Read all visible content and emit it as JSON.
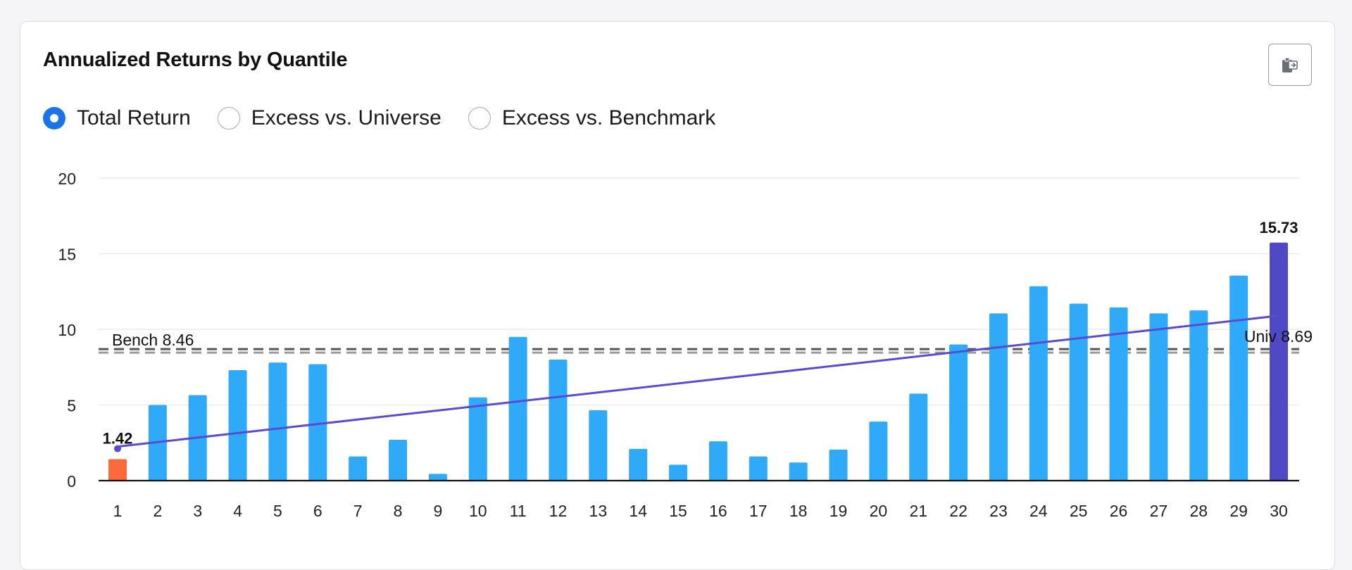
{
  "card": {
    "title": "Annualized Returns by Quantile",
    "export_icon": "clipboard-export-icon"
  },
  "return_type": {
    "options": [
      "Total Return",
      "Excess vs. Universe",
      "Excess vs. Benchmark"
    ],
    "selected": "Total Return"
  },
  "colors": {
    "bar": "#2eaaf8",
    "lowest_bar": "#fa6a3a",
    "highest_bar": "#5049c5",
    "trend": "#5b4bd1",
    "accent": "#1a73e8"
  },
  "chart_data": {
    "type": "bar",
    "categories": [
      "1",
      "2",
      "3",
      "4",
      "5",
      "6",
      "7",
      "8",
      "9",
      "10",
      "11",
      "12",
      "13",
      "14",
      "15",
      "16",
      "17",
      "18",
      "19",
      "20",
      "21",
      "22",
      "23",
      "24",
      "25",
      "26",
      "27",
      "28",
      "29",
      "30"
    ],
    "values": [
      1.42,
      5.0,
      5.65,
      7.3,
      7.8,
      7.7,
      1.6,
      2.7,
      0.45,
      5.5,
      9.5,
      8.0,
      4.65,
      2.1,
      1.05,
      2.6,
      1.6,
      1.2,
      2.05,
      3.9,
      5.75,
      9.0,
      11.05,
      12.85,
      11.7,
      11.45,
      11.05,
      11.25,
      13.55,
      15.73
    ],
    "ylim": [
      0,
      20
    ],
    "yticks": [
      0,
      5,
      10,
      15,
      20
    ],
    "grid": true,
    "data_labels": [
      {
        "category": "1",
        "text": "1.42"
      },
      {
        "category": "30",
        "text": "15.73"
      }
    ],
    "reference_lines": [
      {
        "label": "Bench 8.46",
        "value": 8.46,
        "label_side": "left"
      },
      {
        "label": "Univ 8.69",
        "value": 8.69,
        "label_side": "right"
      }
    ],
    "trend_line": {
      "start_value": 2.25,
      "end_value": 10.9
    }
  }
}
